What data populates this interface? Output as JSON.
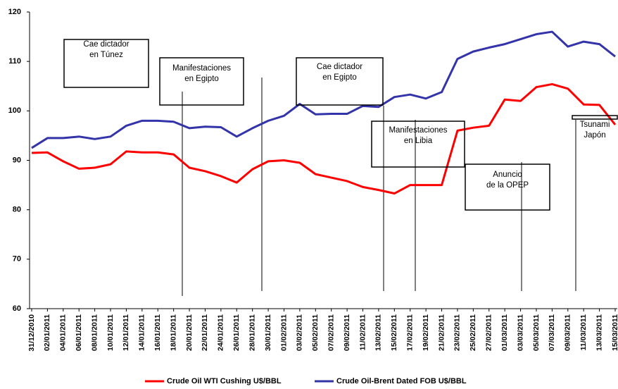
{
  "chart_data": {
    "type": "line",
    "categories": [
      "31/12/2010",
      "02/01/2011",
      "04/01/2011",
      "06/01/2011",
      "08/01/2011",
      "10/01/2011",
      "12/01/2011",
      "14/01/2011",
      "16/01/2011",
      "18/01/2011",
      "20/01/2011",
      "22/01/2011",
      "24/01/2011",
      "26/01/2011",
      "28/01/2011",
      "30/01/2011",
      "01/02/2011",
      "03/02/2011",
      "05/02/2011",
      "07/02/2011",
      "09/02/2011",
      "11/02/2011",
      "13/02/2011",
      "15/02/2011",
      "17/02/2011",
      "19/02/2011",
      "21/02/2011",
      "23/02/2011",
      "25/02/2011",
      "27/02/2011",
      "01/03/2011",
      "03/03/2011",
      "05/03/2011",
      "07/03/2011",
      "09/03/2011",
      "11/03/2011",
      "13/03/2011",
      "15/03/2011"
    ],
    "series": [
      {
        "name": "Crude Oil WTI Cushing U$/BBL",
        "color": "#ff0000",
        "values": [
          91.5,
          91.6,
          89.8,
          88.3,
          88.5,
          89.2,
          91.8,
          91.6,
          91.6,
          91.2,
          88.5,
          87.8,
          86.8,
          85.5,
          88.2,
          89.8,
          90,
          89.5,
          87.2,
          86.5,
          85.8,
          84.6,
          84,
          83.3,
          85,
          85,
          85,
          96,
          96.6,
          97,
          102.3,
          102,
          104.8,
          105.4,
          104.5,
          101.3,
          101.2,
          97.2
        ]
      },
      {
        "name": "Crude Oil-Brent Dated FOB U$/BBL",
        "color": "#3333aa",
        "values": [
          92.5,
          94.5,
          94.5,
          94.8,
          94.3,
          94.8,
          97,
          98,
          98,
          97.8,
          96.5,
          96.8,
          96.7,
          94.8,
          96.5,
          98,
          99,
          101.4,
          99.3,
          99.4,
          99.4,
          101,
          100.8,
          102.8,
          103.3,
          102.5,
          103.8,
          110.5,
          112,
          112.8,
          113.5,
          114.5,
          115.5,
          116,
          113,
          114,
          113.5,
          111
        ]
      }
    ],
    "ylim": [
      60,
      120
    ],
    "yticks": [
      60,
      70,
      80,
      90,
      100,
      110,
      120
    ],
    "annotations": [
      [
        "Cae dictador",
        "en Túnez"
      ],
      [
        "Manifestaciones",
        "en Egipto"
      ],
      [
        "Cae dictador",
        "en Egipto"
      ],
      [
        "Manifestaciones",
        "en Libia"
      ],
      [
        "Anuncio",
        "de la OPEP"
      ],
      [
        "Tsunami",
        "Japón"
      ]
    ]
  }
}
